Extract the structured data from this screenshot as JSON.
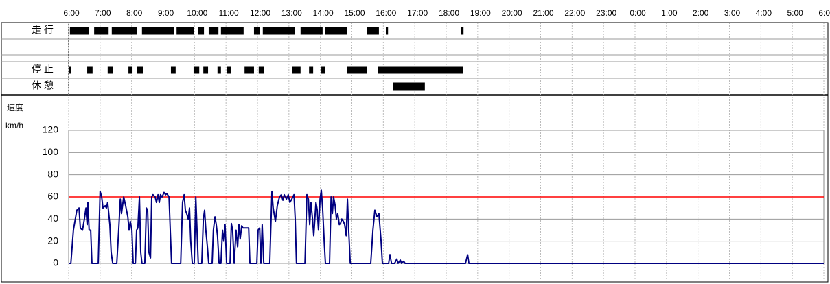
{
  "activity_rows": [
    {
      "label": "走 行",
      "intervals": [
        [
          6.04,
          6.65
        ],
        [
          6.81,
          7.27
        ],
        [
          7.37,
          8.18
        ],
        [
          8.33,
          9.34
        ],
        [
          9.43,
          9.99
        ],
        [
          10.12,
          10.3
        ],
        [
          10.45,
          10.76
        ],
        [
          10.84,
          11.56
        ],
        [
          11.89,
          12.07
        ],
        [
          12.17,
          13.2
        ],
        [
          13.37,
          14.07
        ],
        [
          14.16,
          14.84
        ],
        [
          15.49,
          15.86
        ],
        [
          16.08,
          16.15
        ],
        [
          18.48,
          18.55
        ]
      ]
    },
    {
      "label": "停 止",
      "intervals": [
        [
          6.0,
          6.07
        ],
        [
          6.59,
          6.76
        ],
        [
          7.24,
          7.4
        ],
        [
          7.9,
          8.03
        ],
        [
          8.18,
          8.36
        ],
        [
          9.25,
          9.4
        ],
        [
          9.97,
          10.15
        ],
        [
          10.28,
          10.43
        ],
        [
          10.73,
          10.84
        ],
        [
          11.02,
          11.17
        ],
        [
          11.59,
          11.89
        ],
        [
          12.04,
          12.2
        ],
        [
          13.11,
          13.37
        ],
        [
          13.64,
          13.77
        ],
        [
          14.03,
          14.16
        ],
        [
          14.84,
          15.49
        ],
        [
          15.82,
          18.53
        ]
      ]
    },
    {
      "label": "休 憩",
      "intervals": [
        [
          16.3,
          17.32
        ]
      ]
    }
  ],
  "chart_data": {
    "type": "line",
    "ylabel": "速度",
    "yunit": "km/h",
    "xlim": [
      6,
      30
    ],
    "xticks": [
      {
        "value": 6,
        "label": "6:00"
      },
      {
        "value": 7,
        "label": "7:00"
      },
      {
        "value": 8,
        "label": "8:00"
      },
      {
        "value": 9,
        "label": "9:00"
      },
      {
        "value": 10,
        "label": "10:00"
      },
      {
        "value": 11,
        "label": "11:00"
      },
      {
        "value": 12,
        "label": "12:00"
      },
      {
        "value": 13,
        "label": "13:00"
      },
      {
        "value": 14,
        "label": "14:00"
      },
      {
        "value": 15,
        "label": "15:00"
      },
      {
        "value": 16,
        "label": "16:00"
      },
      {
        "value": 17,
        "label": "17:00"
      },
      {
        "value": 18,
        "label": "18:00"
      },
      {
        "value": 19,
        "label": "19:00"
      },
      {
        "value": 20,
        "label": "20:00"
      },
      {
        "value": 21,
        "label": "21:00"
      },
      {
        "value": 22,
        "label": "22:00"
      },
      {
        "value": 23,
        "label": "23:00"
      },
      {
        "value": 24,
        "label": "0:00"
      },
      {
        "value": 25,
        "label": "1:00"
      },
      {
        "value": 26,
        "label": "2:00"
      },
      {
        "value": 27,
        "label": "3:00"
      },
      {
        "value": 28,
        "label": "4:00"
      },
      {
        "value": 29,
        "label": "5:00"
      },
      {
        "value": 30,
        "label": "6:00"
      }
    ],
    "ylim": [
      0,
      120
    ],
    "yticks": [
      0,
      20,
      40,
      60,
      80,
      100,
      120
    ],
    "grid": true,
    "reference_line": {
      "value": 60,
      "color": "#ff0000"
    },
    "x": [
      6.0,
      6.07,
      6.15,
      6.26,
      6.33,
      6.37,
      6.44,
      6.5,
      6.55,
      6.59,
      6.61,
      6.65,
      6.7,
      6.74,
      6.94,
      7.0,
      7.05,
      7.09,
      7.16,
      7.2,
      7.24,
      7.31,
      7.35,
      7.4,
      7.53,
      7.59,
      7.64,
      7.68,
      7.75,
      7.81,
      7.88,
      7.92,
      7.96,
      8.01,
      8.05,
      8.12,
      8.16,
      8.2,
      8.25,
      8.29,
      8.33,
      8.42,
      8.47,
      8.51,
      8.55,
      8.6,
      8.64,
      8.68,
      8.75,
      8.79,
      8.84,
      8.88,
      8.92,
      8.97,
      9.03,
      9.08,
      9.12,
      9.19,
      9.23,
      9.27,
      9.56,
      9.62,
      9.67,
      9.71,
      9.75,
      9.8,
      9.84,
      9.88,
      9.93,
      9.99,
      10.04,
      10.08,
      10.12,
      10.23,
      10.28,
      10.32,
      10.36,
      10.41,
      10.45,
      10.56,
      10.6,
      10.65,
      10.69,
      10.73,
      10.78,
      10.84,
      10.89,
      10.93,
      10.97,
      11.02,
      11.13,
      11.17,
      11.21,
      11.26,
      11.32,
      11.37,
      11.41,
      11.45,
      11.5,
      11.54,
      11.63,
      11.72,
      11.76,
      11.98,
      12.02,
      12.07,
      12.11,
      12.15,
      12.2,
      12.39,
      12.46,
      12.5,
      12.57,
      12.63,
      12.7,
      12.76,
      12.81,
      12.85,
      12.92,
      12.98,
      13.03,
      13.09,
      13.16,
      13.2,
      13.24,
      13.51,
      13.57,
      13.62,
      13.66,
      13.7,
      13.75,
      13.79,
      13.86,
      13.9,
      13.94,
      13.99,
      14.03,
      14.07,
      14.12,
      14.16,
      14.29,
      14.34,
      14.38,
      14.42,
      14.47,
      14.51,
      14.55,
      14.6,
      14.64,
      14.68,
      14.73,
      14.77,
      14.82,
      14.86,
      14.9,
      14.95,
      15.6,
      15.67,
      15.73,
      15.8,
      15.86,
      15.93,
      15.97,
      16.17,
      16.21,
      16.26,
      16.36,
      16.43,
      16.47,
      16.54,
      16.58,
      16.65,
      16.69,
      18.61,
      18.68,
      18.72,
      30.0
    ],
    "series": [
      {
        "color": "#000080",
        "values": [
          0,
          0,
          30,
          48,
          50,
          32,
          30,
          40,
          50,
          35,
          55,
          30,
          30,
          0,
          0,
          65,
          60,
          50,
          52,
          50,
          55,
          35,
          10,
          0,
          0,
          30,
          58,
          45,
          60,
          52,
          42,
          30,
          38,
          30,
          0,
          0,
          30,
          32,
          60,
          10,
          0,
          0,
          50,
          48,
          10,
          5,
          60,
          62,
          60,
          55,
          62,
          55,
          62,
          60,
          64,
          62,
          63,
          60,
          30,
          0,
          0,
          55,
          62,
          48,
          45,
          40,
          50,
          20,
          0,
          0,
          60,
          30,
          0,
          0,
          40,
          48,
          30,
          15,
          0,
          0,
          30,
          42,
          35,
          25,
          0,
          0,
          30,
          20,
          35,
          0,
          0,
          36,
          30,
          0,
          30,
          15,
          35,
          22,
          34,
          32,
          32,
          32,
          0,
          0,
          30,
          32,
          0,
          35,
          0,
          0,
          65,
          50,
          38,
          52,
          60,
          62,
          57,
          62,
          58,
          62,
          55,
          58,
          62,
          40,
          0,
          0,
          62,
          58,
          35,
          55,
          40,
          25,
          55,
          48,
          30,
          58,
          66,
          50,
          20,
          0,
          0,
          60,
          45,
          60,
          52,
          40,
          45,
          35,
          36,
          40,
          38,
          35,
          25,
          58,
          30,
          0,
          0,
          30,
          48,
          42,
          45,
          20,
          0,
          0,
          8,
          0,
          0,
          4,
          0,
          3,
          0,
          2,
          0,
          0,
          8,
          0,
          0
        ]
      }
    ]
  }
}
